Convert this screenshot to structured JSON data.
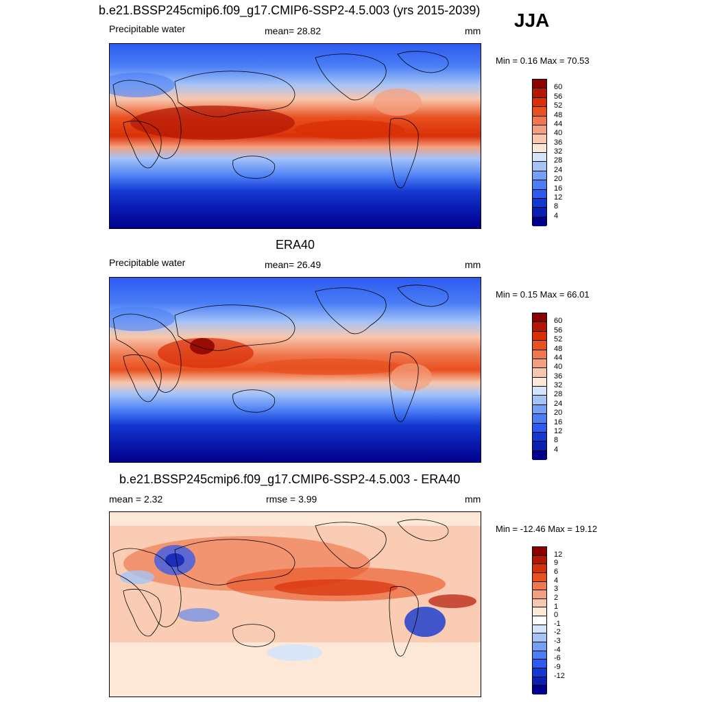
{
  "season": "JJA",
  "colors": {
    "pw": [
      "#00008c",
      "#0a1fb4",
      "#1438d2",
      "#2d5af0",
      "#4a7ef5",
      "#73a0f5",
      "#a5c3f7",
      "#d4e5fb",
      "#fde8d8",
      "#f8c7ad",
      "#f4a07f",
      "#f0774e",
      "#e8501f",
      "#d93008",
      "#b41805",
      "#8c0000"
    ],
    "diff": [
      "#00008c",
      "#0a1fb4",
      "#1438d2",
      "#2d5af0",
      "#4a7ef5",
      "#73a0f5",
      "#a5c3f7",
      "#d4e5fb",
      "#ffffff",
      "#fde8d8",
      "#f8c7ad",
      "#f4a07f",
      "#f0774e",
      "#e8501f",
      "#d93008",
      "#b41805",
      "#8c0000"
    ]
  },
  "panels": [
    {
      "title": "b.e21.BSSP245cmip6.f09_g17.CMIP6-SSP2-4.5.003 (yrs 2015-2039)",
      "left": "Precipitable water",
      "center": "mean=  28.82",
      "units": "mm",
      "minmax": "Min =   0.16 Max =  70.53",
      "ticks": [
        "60",
        "56",
        "52",
        "48",
        "44",
        "40",
        "36",
        "32",
        "28",
        "24",
        "20",
        "16",
        "12",
        "8",
        "4"
      ]
    },
    {
      "title": "ERA40",
      "left": "Precipitable water",
      "center": "mean=  26.49",
      "units": "mm",
      "minmax": "Min =   0.15 Max =  66.01",
      "ticks": [
        "60",
        "56",
        "52",
        "48",
        "44",
        "40",
        "36",
        "32",
        "28",
        "24",
        "20",
        "16",
        "12",
        "8",
        "4"
      ]
    },
    {
      "title": "b.e21.BSSP245cmip6.f09_g17.CMIP6-SSP2-4.5.003 - ERA40",
      "left": "mean =   2.32",
      "center": "rmse =   3.99",
      "units": "mm",
      "minmax": "Min = -12.46 Max =  19.12",
      "ticks": [
        "12",
        "9",
        "6",
        "4",
        "3",
        "2",
        "1",
        "0",
        "-1",
        "-2",
        "-3",
        "-4",
        "-6",
        "-9",
        "-12"
      ]
    }
  ]
}
